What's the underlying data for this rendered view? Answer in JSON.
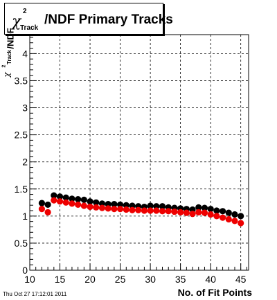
{
  "title": {
    "symbol": "χ",
    "superscript": "2",
    "subscript": "Track",
    "text": "/NDF Primary Tracks"
  },
  "timestamp": "Thu Oct 27 17:12:01 2011",
  "chart_data": {
    "type": "scatter",
    "xlabel": "No. of Fit Points",
    "ylabel_parts": {
      "symbol": "χ",
      "superscript": "2",
      "subscript": "Track",
      "rest": "/NDF"
    },
    "xlim": [
      10,
      46.3
    ],
    "ylim": [
      0,
      4.35
    ],
    "x_ticks": [
      10,
      15,
      20,
      25,
      30,
      35,
      40,
      45
    ],
    "y_ticks": [
      "0",
      "0.5",
      "1",
      "1.5",
      "2",
      "2.5",
      "3",
      "3.5",
      "4"
    ],
    "grid": true,
    "series": [
      {
        "color": "#000000",
        "x": [
          12,
          13,
          14,
          15,
          16,
          17,
          18,
          19,
          20,
          21,
          22,
          23,
          24,
          25,
          26,
          27,
          28,
          29,
          30,
          31,
          32,
          33,
          34,
          35,
          36,
          37,
          38,
          39,
          40,
          41,
          42,
          43,
          44,
          45
        ],
        "values": [
          1.24,
          1.21,
          1.38,
          1.36,
          1.34,
          1.32,
          1.31,
          1.3,
          1.27,
          1.25,
          1.23,
          1.22,
          1.22,
          1.21,
          1.2,
          1.19,
          1.18,
          1.17,
          1.19,
          1.18,
          1.18,
          1.16,
          1.15,
          1.14,
          1.13,
          1.12,
          1.16,
          1.15,
          1.13,
          1.1,
          1.09,
          1.06,
          1.03,
          1.0
        ]
      },
      {
        "color": "#ee0000",
        "x": [
          12,
          13,
          14,
          15,
          16,
          17,
          18,
          19,
          20,
          21,
          22,
          23,
          24,
          25,
          26,
          27,
          28,
          29,
          30,
          31,
          32,
          33,
          34,
          35,
          36,
          37,
          38,
          39,
          40,
          41,
          42,
          43,
          44,
          45
        ],
        "values": [
          1.13,
          1.07,
          1.29,
          1.27,
          1.25,
          1.23,
          1.21,
          1.19,
          1.17,
          1.16,
          1.15,
          1.14,
          1.13,
          1.13,
          1.12,
          1.11,
          1.11,
          1.1,
          1.1,
          1.1,
          1.09,
          1.09,
          1.08,
          1.07,
          1.06,
          1.04,
          1.07,
          1.06,
          1.03,
          1.0,
          0.97,
          0.94,
          0.91,
          0.87
        ]
      }
    ]
  }
}
